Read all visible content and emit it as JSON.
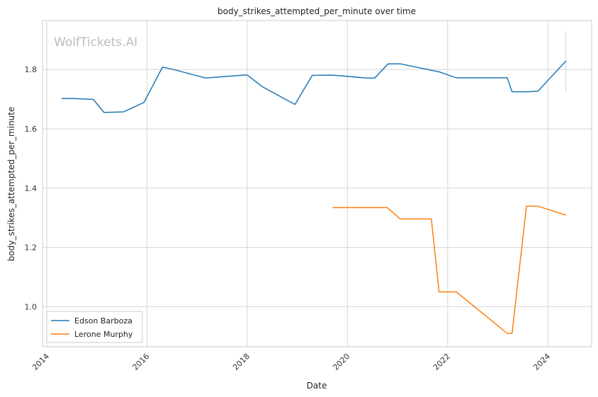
{
  "watermark": "WolfTickets.AI",
  "chart_data": {
    "type": "line",
    "title": "body_strikes_attempted_per_minute over time",
    "xlabel": "Date",
    "ylabel": "body_strikes_attempted_per_minute",
    "x_type": "date",
    "xlim": [
      "2013-12-01",
      "2024-11-15"
    ],
    "ylim": [
      0.865,
      1.965
    ],
    "xticks": [
      "2014",
      "2016",
      "2018",
      "2020",
      "2022",
      "2024"
    ],
    "yticks": [
      1.0,
      1.2,
      1.4,
      1.6,
      1.8
    ],
    "grid": true,
    "legend": "lower-left",
    "series": [
      {
        "name": "Edson Barboza",
        "color": "#1f77b4",
        "points": [
          [
            "2014-04-19",
            1.702
          ],
          [
            "2014-07-16",
            1.702
          ],
          [
            "2014-12-06",
            1.699
          ],
          [
            "2015-02-22",
            1.655
          ],
          [
            "2015-07-15",
            1.657
          ],
          [
            "2015-12-11",
            1.689
          ],
          [
            "2016-04-23",
            1.808
          ],
          [
            "2016-07-13",
            1.8
          ],
          [
            "2017-03-04",
            1.771
          ],
          [
            "2017-12-30",
            1.782
          ],
          [
            "2018-04-21",
            1.742
          ],
          [
            "2018-12-15",
            1.682
          ],
          [
            "2019-04-20",
            1.78
          ],
          [
            "2019-09-15",
            1.781
          ],
          [
            "2020-05-20",
            1.771
          ],
          [
            "2020-07-18",
            1.771
          ],
          [
            "2020-10-24",
            1.819
          ],
          [
            "2021-01-20",
            1.819
          ],
          [
            "2021-10-30",
            1.792
          ],
          [
            "2021-10-30",
            1.792
          ],
          [
            "2022-03-05",
            1.772
          ],
          [
            "2023-03-11",
            1.772
          ],
          [
            "2023-04-15",
            1.725
          ],
          [
            "2023-08-12",
            1.725
          ],
          [
            "2023-10-21",
            1.727
          ],
          [
            "2024-05-11",
            1.828
          ]
        ],
        "error_bar": {
          "x": "2024-05-11",
          "low": 1.727,
          "high": 1.928
        }
      },
      {
        "name": "Lerone Murphy",
        "color": "#ff7f0e",
        "points": [
          [
            "2019-09-15",
            1.334
          ],
          [
            "2020-10-18",
            1.334
          ],
          [
            "2021-01-20",
            1.296
          ],
          [
            "2021-09-04",
            1.296
          ],
          [
            "2021-10-30",
            1.05
          ],
          [
            "2022-03-05",
            1.05
          ],
          [
            "2023-03-11",
            0.91
          ],
          [
            "2023-04-15",
            0.91
          ],
          [
            "2023-07-29",
            1.339
          ],
          [
            "2023-10-21",
            1.339
          ],
          [
            "2024-05-11",
            1.309
          ]
        ]
      }
    ]
  }
}
